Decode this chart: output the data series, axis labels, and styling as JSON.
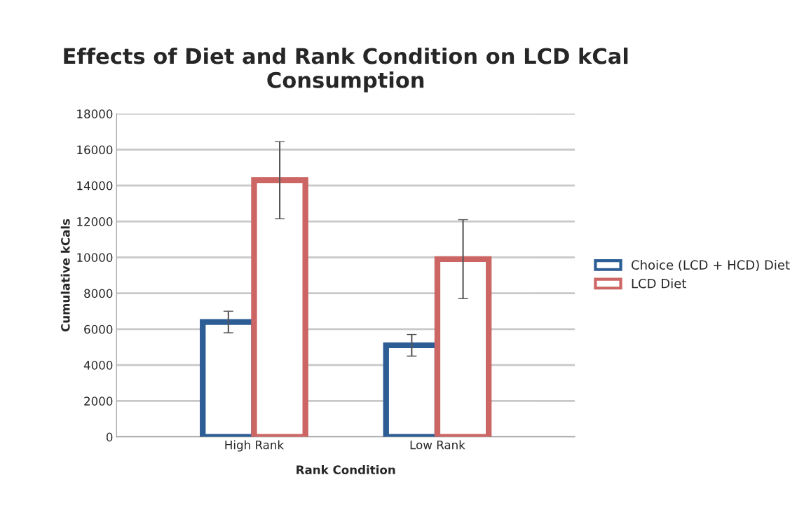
{
  "chart_data": {
    "type": "bar",
    "title": "Effects of Diet and Rank Condition on LCD kCal Consumption",
    "xlabel": "Rank Condition",
    "ylabel": "Cumulative kCals",
    "categories": [
      "High Rank",
      "Low Rank"
    ],
    "series": [
      {
        "name": "Choice (LCD + HCD) Diet",
        "color": "#2c5d94",
        "values": [
          6400,
          5100
        ],
        "errors": [
          600,
          600
        ]
      },
      {
        "name": "LCD Diet",
        "color": "#cc6664",
        "values": [
          14300,
          9900
        ],
        "errors": [
          2150,
          2200
        ]
      }
    ],
    "ylim": [
      0,
      18000
    ],
    "yticks": [
      0,
      2000,
      4000,
      6000,
      8000,
      10000,
      12000,
      14000,
      16000,
      18000
    ],
    "grid": "y",
    "legend": "right"
  }
}
